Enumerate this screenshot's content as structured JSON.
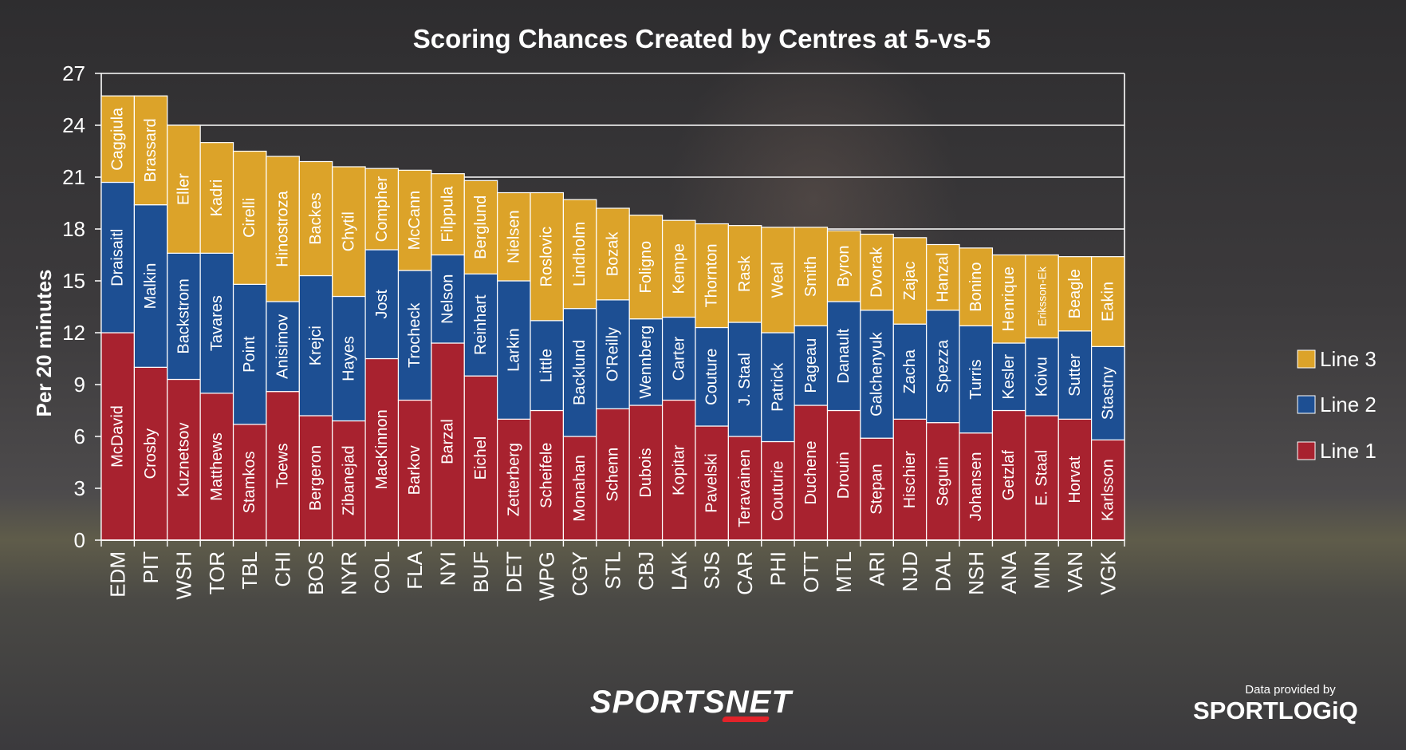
{
  "chart_data": {
    "type": "bar",
    "stacked": true,
    "title": "Scoring Chances Created by Centres at 5-vs-5",
    "ylabel": "Per 20 minutes",
    "ylim": [
      0,
      27
    ],
    "yticks": [
      "0",
      "3",
      "6",
      "9",
      "12",
      "15",
      "18",
      "21",
      "24",
      "27"
    ],
    "grid": true,
    "legend_position": "right",
    "categories": [
      "EDM",
      "PIT",
      "WSH",
      "TOR",
      "TBL",
      "CHI",
      "BOS",
      "NYR",
      "COL",
      "FLA",
      "NYI",
      "BUF",
      "DET",
      "WPG",
      "CGY",
      "STL",
      "CBJ",
      "LAK",
      "SJS",
      "CAR",
      "PHI",
      "OTT",
      "MTL",
      "ARI",
      "NJD",
      "DAL",
      "NSH",
      "ANA",
      "MIN",
      "VAN",
      "VGK"
    ],
    "series": [
      {
        "name": "Line 1",
        "color": "#a8222f",
        "values": [
          12.0,
          10.0,
          9.3,
          8.5,
          6.7,
          8.6,
          7.2,
          6.9,
          10.5,
          8.1,
          11.4,
          9.5,
          7.0,
          7.5,
          6.0,
          7.6,
          7.8,
          8.1,
          6.6,
          6.0,
          5.7,
          7.8,
          7.5,
          5.9,
          7.0,
          6.8,
          6.2,
          7.5,
          7.2,
          7.0,
          5.8
        ],
        "labels": [
          "McDavid",
          "Crosby",
          "Kuznetsov",
          "Matthews",
          "Stamkos",
          "Toews",
          "Bergeron",
          "Zibanejad",
          "MacKinnon",
          "Barkov",
          "Barzal",
          "Eichel",
          "Zetterberg",
          "Scheifele",
          "Monahan",
          "Schenn",
          "Dubois",
          "Kopitar",
          "Pavelski",
          "Teravainen",
          "Couturie",
          "Duchene",
          "Drouin",
          "Stepan",
          "Hischier",
          "Seguin",
          "Johansen",
          "Getzlaf",
          "E. Staal",
          "Horvat",
          "Karlsson"
        ]
      },
      {
        "name": "Line 2",
        "color": "#1d4f93",
        "values": [
          8.7,
          9.4,
          7.3,
          8.1,
          8.1,
          5.2,
          8.1,
          7.2,
          6.3,
          7.5,
          5.1,
          5.9,
          8.0,
          5.2,
          7.4,
          6.3,
          5.0,
          4.8,
          5.7,
          6.6,
          6.3,
          4.6,
          6.3,
          7.4,
          5.5,
          6.5,
          6.2,
          3.9,
          4.5,
          5.1,
          5.4
        ],
        "labels": [
          "Draisaitl",
          "Malkin",
          "Backstrom",
          "Tavares",
          "Point",
          "Anisimov",
          "Krejci",
          "Hayes",
          "Jost",
          "Trocheck",
          "Nelson",
          "Reinhart",
          "Larkin",
          "Little",
          "Backlund",
          "O'Reilly",
          "Wennberg",
          "Carter",
          "Couture",
          "J. Staal",
          "Patrick",
          "Pageau",
          "Danault",
          "Galchenyuk",
          "Zacha",
          "Spezza",
          "Turris",
          "Kesler",
          "Koivu",
          "Sutter",
          "Stastny"
        ]
      },
      {
        "name": "Line 3",
        "color": "#dca329",
        "values": [
          5.0,
          6.3,
          7.4,
          6.4,
          7.7,
          8.4,
          6.6,
          7.5,
          4.7,
          5.8,
          4.7,
          5.4,
          5.1,
          7.4,
          6.3,
          5.3,
          6.0,
          5.6,
          6.0,
          5.6,
          6.1,
          5.7,
          4.1,
          4.4,
          5.0,
          3.8,
          4.5,
          5.1,
          4.8,
          4.3,
          5.2
        ],
        "labels": [
          "Caggiula",
          "Brassard",
          "Eller",
          "Kadri",
          "Cirelli",
          "Hinostroza",
          "Backes",
          "Chytil",
          "Compher",
          "McCann",
          "Filppula",
          "Berglund",
          "Nielsen",
          "Roslovic",
          "Lindholm",
          "Bozak",
          "Foligno",
          "Kempe",
          "Thornton",
          "Rask",
          "Weal",
          "Smith",
          "Byron",
          "Dvorak",
          "Zajac",
          "Hanzal",
          "Bonino",
          "Henrique",
          "Eriksson-Ek",
          "Beagle",
          "Eakin"
        ]
      }
    ]
  },
  "branding": {
    "network_logo": "SPORTSNET",
    "credit_caption": "Data provided by",
    "credit_logo": "SPORTLOGiQ"
  }
}
